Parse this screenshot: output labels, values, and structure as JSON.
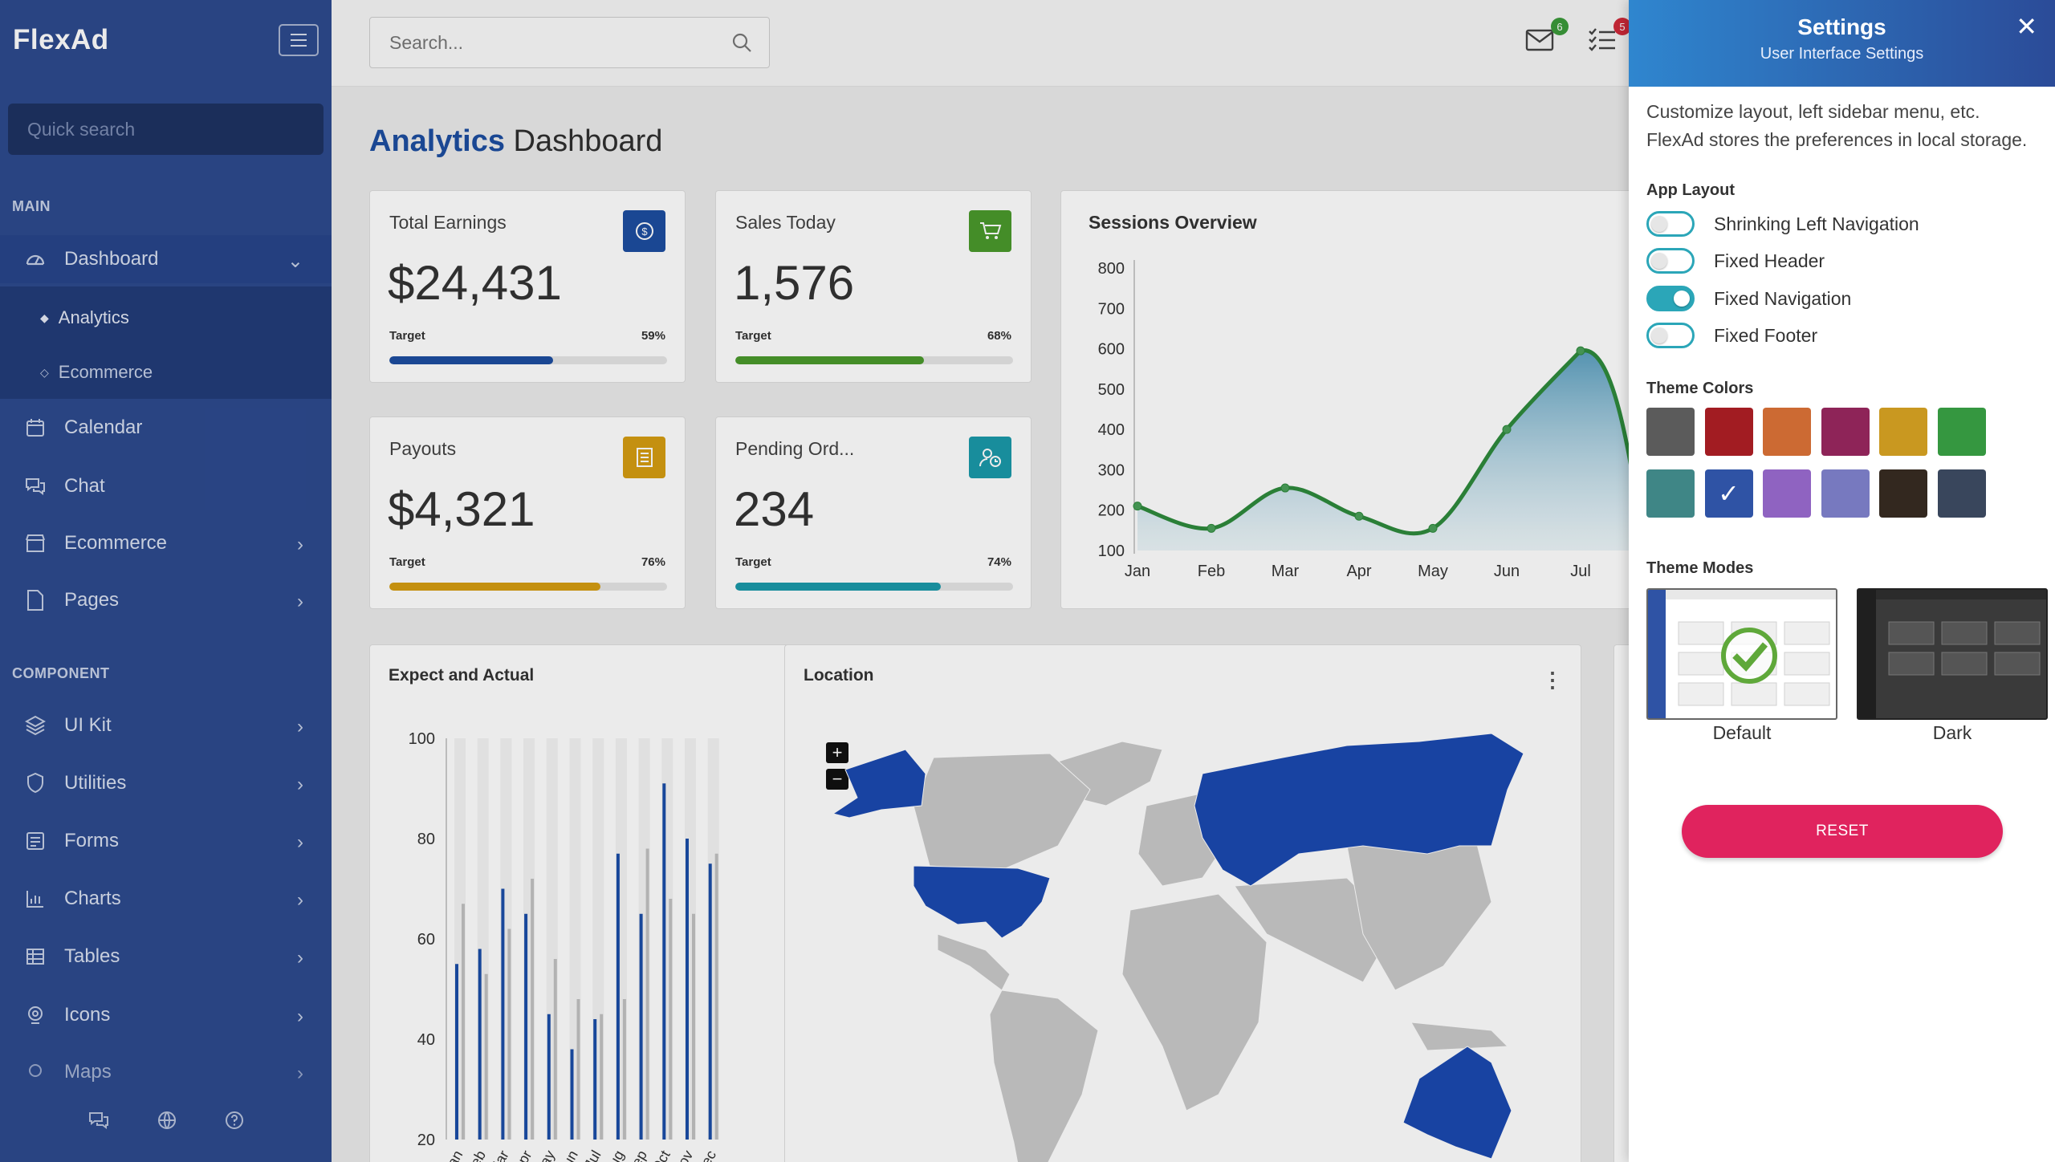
{
  "sidebar": {
    "logo": "FlexAd",
    "quick_search_placeholder": "Quick search",
    "sections": {
      "main": "MAIN",
      "component": "COMPONENT"
    },
    "items": [
      {
        "label": "Dashboard",
        "icon": "gauge-icon"
      },
      {
        "label": "Calendar",
        "icon": "calendar-icon"
      },
      {
        "label": "Chat",
        "icon": "chat-icon"
      },
      {
        "label": "Ecommerce",
        "icon": "store-icon"
      },
      {
        "label": "Pages",
        "icon": "page-icon"
      },
      {
        "label": "UI Kit",
        "icon": "layers-icon"
      },
      {
        "label": "Utilities",
        "icon": "shield-icon"
      },
      {
        "label": "Forms",
        "icon": "form-icon"
      },
      {
        "label": "Charts",
        "icon": "chart-icon"
      },
      {
        "label": "Tables",
        "icon": "table-icon"
      },
      {
        "label": "Icons",
        "icon": "icons-icon"
      },
      {
        "label": "Maps",
        "icon": "map-icon"
      }
    ],
    "sub_items": [
      {
        "label": "Analytics"
      },
      {
        "label": "Ecommerce"
      }
    ]
  },
  "topbar": {
    "search_placeholder": "Search...",
    "mail_badge": "6",
    "tasks_badge": "5"
  },
  "page_title": {
    "strong": "Analytics",
    "rest": " Dashboard"
  },
  "stats": [
    {
      "label": "Total Earnings",
      "value": "$24,431",
      "target_label": "Target",
      "percent": "59%",
      "fraction": 0.59,
      "color": "#1d4ea0",
      "icon": "dollar-icon"
    },
    {
      "label": "Sales Today",
      "value": "1,576",
      "target_label": "Target",
      "percent": "68%",
      "fraction": 0.68,
      "color": "#4a9a2c",
      "icon": "cart-icon"
    },
    {
      "label": "Payouts",
      "value": "$4,321",
      "target_label": "Target",
      "percent": "76%",
      "fraction": 0.76,
      "color": "#d59d12",
      "icon": "document-icon"
    },
    {
      "label": "Pending Ord...",
      "value": "234",
      "target_label": "Target",
      "percent": "74%",
      "fraction": 0.74,
      "color": "#1b9aaa",
      "icon": "user-clock-icon"
    }
  ],
  "sessions_title": "Sessions Overview",
  "expect_title": "Expect and Actual",
  "location_title": "Location",
  "map_zoom": {
    "plus": "+",
    "minus": "−"
  },
  "chart_data": [
    {
      "type": "area",
      "title": "Sessions Overview",
      "categories": [
        "Jan",
        "Feb",
        "Mar",
        "Apr",
        "May",
        "Jun",
        "Jul"
      ],
      "series": [
        {
          "values": [
            210,
            155,
            255,
            185,
            155,
            400,
            595
          ]
        }
      ],
      "ylim": [
        100,
        800
      ],
      "yticks": [
        100,
        200,
        300,
        400,
        500,
        600,
        700,
        800
      ]
    },
    {
      "type": "bar",
      "title": "Expect and Actual",
      "categories": [
        "Jan",
        "Feb",
        "Mar",
        "Apr",
        "May",
        "Jun",
        "Jul",
        "Aug",
        "Sep",
        "Oct",
        "Nov",
        "Dec"
      ],
      "series": [
        {
          "values": [
            55,
            58,
            70,
            65,
            45,
            38,
            44,
            77,
            65,
            91,
            80,
            75
          ]
        },
        {
          "values": [
            67,
            53,
            62,
            72,
            56,
            48,
            45,
            48,
            78,
            68,
            65,
            77
          ]
        }
      ],
      "ylim": [
        20,
        100
      ],
      "yticks": [
        20,
        40,
        60,
        80,
        100
      ]
    }
  ],
  "settings": {
    "title": "Settings",
    "subtitle": "User Interface Settings",
    "desc_line1": "Customize layout, left sidebar menu, etc.",
    "desc_line2": "FlexAd stores the preferences in local storage.",
    "app_layout": "App Layout",
    "toggles": [
      {
        "label": "Shrinking Left Navigation",
        "on": false
      },
      {
        "label": "Fixed Header",
        "on": false
      },
      {
        "label": "Fixed Navigation",
        "on": true
      },
      {
        "label": "Fixed Footer",
        "on": false
      }
    ],
    "theme_colors_label": "Theme Colors",
    "theme_colors": [
      "#5b5b5b",
      "#a21c22",
      "#cc6a33",
      "#8e2458",
      "#c99820",
      "#359740",
      "#3f8686",
      "#2f53a5",
      "#8f63c1",
      "#7779bf",
      "#33281f",
      "#39465c"
    ],
    "selected_color_index": 7,
    "theme_modes_label": "Theme Modes",
    "modes": [
      {
        "label": "Default"
      },
      {
        "label": "Dark"
      }
    ],
    "reset_label": "RESET"
  }
}
